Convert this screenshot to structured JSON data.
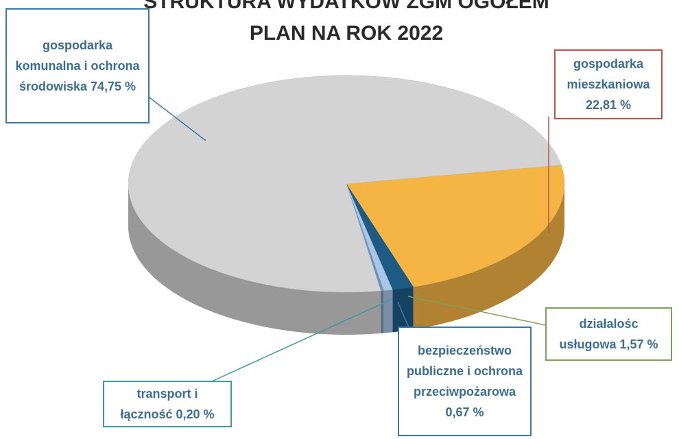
{
  "chart_data": {
    "type": "pie3d",
    "title": "STRUKTURA WYDATKÓW ZGM OGÓŁEM",
    "subtitle": "PLAN NA ROK 2022",
    "categories": [
      "gospodarka mieszkaniowa",
      "działalośc usługowa",
      "bezpieczeństwo publiczne i ochrona przeciwpożarowa",
      "transport i łączność",
      "gospodarka komunalna i ochrona środowiska"
    ],
    "values": [
      22.81,
      1.57,
      0.67,
      0.2,
      74.75
    ],
    "value_labels": [
      "22,81 %",
      "1,57 %",
      "0,67 %",
      "0,20 %",
      "74,75 %"
    ],
    "colors": [
      "#f4b545",
      "#1d5b85",
      "#a9c6e6",
      "#6f93b8",
      "#d3d3d3"
    ]
  }
}
